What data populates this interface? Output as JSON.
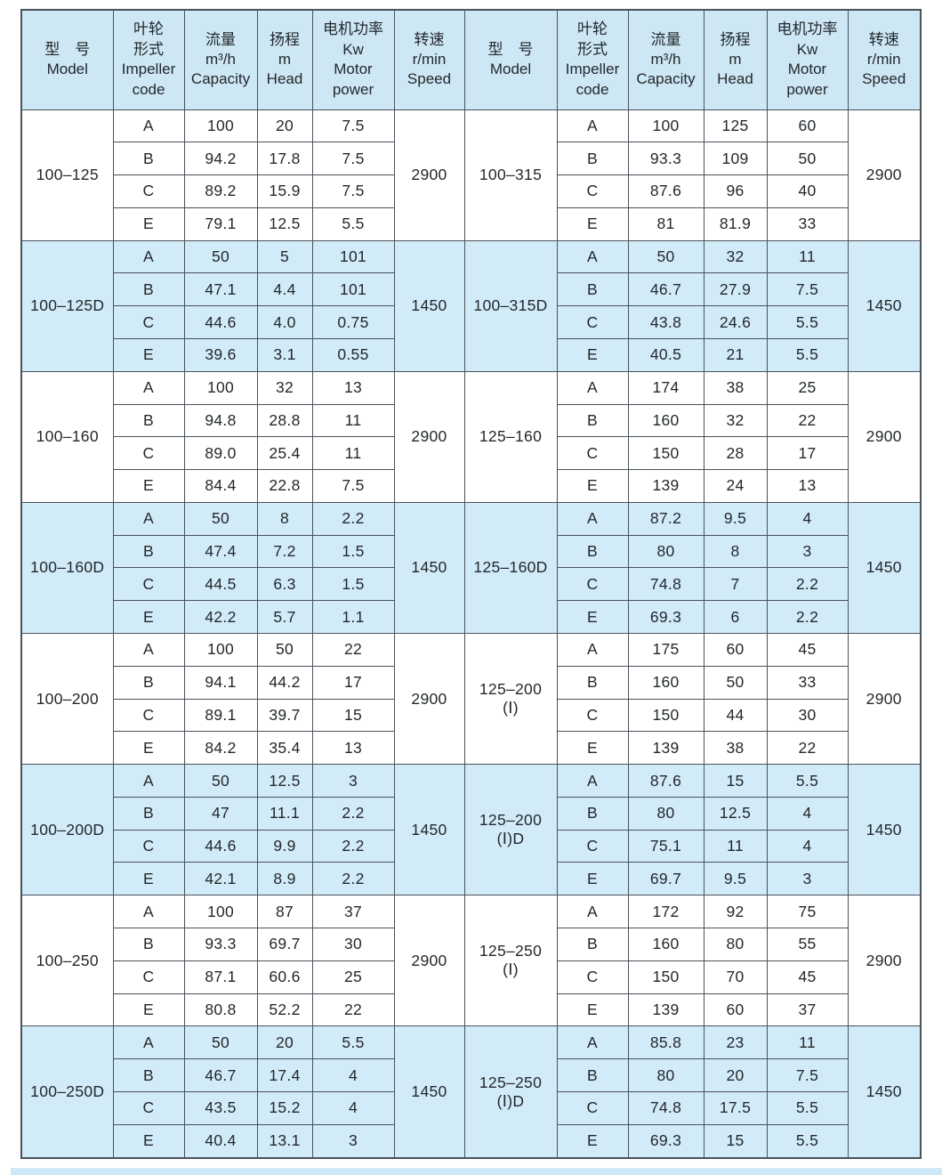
{
  "colors": {
    "header_bg": "#cde7f4",
    "row_blue": "#d2ebf8",
    "row_white": "#ffffff",
    "border": "#4a525a",
    "text": "#23282c",
    "bottom_strip": "#cfe9f6"
  },
  "table": {
    "header": {
      "model": "型　号\nModel",
      "impeller": "叶轮\n形式\nImpeller\ncode",
      "capacity": "流量\nm³/h\nCapacity",
      "head": "扬程\nm\nHead",
      "power": "电机功率\nKw\nMotor\npower",
      "speed": "转速\nr/min\nSpeed"
    },
    "groups": [
      {
        "shade": "white",
        "left": {
          "model": "100–125",
          "speed": "2900",
          "rows": [
            [
              "A",
              "100",
              "20",
              "7.5"
            ],
            [
              "B",
              "94.2",
              "17.8",
              "7.5"
            ],
            [
              "C",
              "89.2",
              "15.9",
              "7.5"
            ],
            [
              "E",
              "79.1",
              "12.5",
              "5.5"
            ]
          ]
        },
        "right": {
          "model": "100–315",
          "speed": "2900",
          "rows": [
            [
              "A",
              "100",
              "125",
              "60"
            ],
            [
              "B",
              "93.3",
              "109",
              "50"
            ],
            [
              "C",
              "87.6",
              "96",
              "40"
            ],
            [
              "E",
              "81",
              "81.9",
              "33"
            ]
          ]
        }
      },
      {
        "shade": "blue",
        "left": {
          "model": "100–125D",
          "speed": "1450",
          "rows": [
            [
              "A",
              "50",
              "5",
              "101"
            ],
            [
              "B",
              "47.1",
              "4.4",
              "101"
            ],
            [
              "C",
              "44.6",
              "4.0",
              "0.75"
            ],
            [
              "E",
              "39.6",
              "3.1",
              "0.55"
            ]
          ]
        },
        "right": {
          "model": "100–315D",
          "speed": "1450",
          "rows": [
            [
              "A",
              "50",
              "32",
              "11"
            ],
            [
              "B",
              "46.7",
              "27.9",
              "7.5"
            ],
            [
              "C",
              "43.8",
              "24.6",
              "5.5"
            ],
            [
              "E",
              "40.5",
              "21",
              "5.5"
            ]
          ]
        }
      },
      {
        "shade": "white",
        "left": {
          "model": "100–160",
          "speed": "2900",
          "rows": [
            [
              "A",
              "100",
              "32",
              "13"
            ],
            [
              "B",
              "94.8",
              "28.8",
              "11"
            ],
            [
              "C",
              "89.0",
              "25.4",
              "11"
            ],
            [
              "E",
              "84.4",
              "22.8",
              "7.5"
            ]
          ]
        },
        "right": {
          "model": "125–160",
          "speed": "2900",
          "rows": [
            [
              "A",
              "174",
              "38",
              "25"
            ],
            [
              "B",
              "160",
              "32",
              "22"
            ],
            [
              "C",
              "150",
              "28",
              "17"
            ],
            [
              "E",
              "139",
              "24",
              "13"
            ]
          ]
        }
      },
      {
        "shade": "blue",
        "left": {
          "model": "100–160D",
          "speed": "1450",
          "rows": [
            [
              "A",
              "50",
              "8",
              "2.2"
            ],
            [
              "B",
              "47.4",
              "7.2",
              "1.5"
            ],
            [
              "C",
              "44.5",
              "6.3",
              "1.5"
            ],
            [
              "E",
              "42.2",
              "5.7",
              "1.1"
            ]
          ]
        },
        "right": {
          "model": "125–160D",
          "speed": "1450",
          "rows": [
            [
              "A",
              "87.2",
              "9.5",
              "4"
            ],
            [
              "B",
              "80",
              "8",
              "3"
            ],
            [
              "C",
              "74.8",
              "7",
              "2.2"
            ],
            [
              "E",
              "69.3",
              "6",
              "2.2"
            ]
          ]
        }
      },
      {
        "shade": "white",
        "left": {
          "model": "100–200",
          "speed": "2900",
          "rows": [
            [
              "A",
              "100",
              "50",
              "22"
            ],
            [
              "B",
              "94.1",
              "44.2",
              "17"
            ],
            [
              "C",
              "89.1",
              "39.7",
              "15"
            ],
            [
              "E",
              "84.2",
              "35.4",
              "13"
            ]
          ]
        },
        "right": {
          "model": "125–200\n(Ⅰ)",
          "speed": "2900",
          "rows": [
            [
              "A",
              "175",
              "60",
              "45"
            ],
            [
              "B",
              "160",
              "50",
              "33"
            ],
            [
              "C",
              "150",
              "44",
              "30"
            ],
            [
              "E",
              "139",
              "38",
              "22"
            ]
          ]
        }
      },
      {
        "shade": "blue",
        "left": {
          "model": "100–200D",
          "speed": "1450",
          "rows": [
            [
              "A",
              "50",
              "12.5",
              "3"
            ],
            [
              "B",
              "47",
              "11.1",
              "2.2"
            ],
            [
              "C",
              "44.6",
              "9.9",
              "2.2"
            ],
            [
              "E",
              "42.1",
              "8.9",
              "2.2"
            ]
          ]
        },
        "right": {
          "model": "125–200\n(Ⅰ)D",
          "speed": "1450",
          "rows": [
            [
              "A",
              "87.6",
              "15",
              "5.5"
            ],
            [
              "B",
              "80",
              "12.5",
              "4"
            ],
            [
              "C",
              "75.1",
              "11",
              "4"
            ],
            [
              "E",
              "69.7",
              "9.5",
              "3"
            ]
          ]
        }
      },
      {
        "shade": "white",
        "left": {
          "model": "100–250",
          "speed": "2900",
          "rows": [
            [
              "A",
              "100",
              "87",
              "37"
            ],
            [
              "B",
              "93.3",
              "69.7",
              "30"
            ],
            [
              "C",
              "87.1",
              "60.6",
              "25"
            ],
            [
              "E",
              "80.8",
              "52.2",
              "22"
            ]
          ]
        },
        "right": {
          "model": "125–250\n(Ⅰ)",
          "speed": "2900",
          "rows": [
            [
              "A",
              "172",
              "92",
              "75"
            ],
            [
              "B",
              "160",
              "80",
              "55"
            ],
            [
              "C",
              "150",
              "70",
              "45"
            ],
            [
              "E",
              "139",
              "60",
              "37"
            ]
          ]
        }
      },
      {
        "shade": "blue",
        "left": {
          "model": "100–250D",
          "speed": "1450",
          "rows": [
            [
              "A",
              "50",
              "20",
              "5.5"
            ],
            [
              "B",
              "46.7",
              "17.4",
              "4"
            ],
            [
              "C",
              "43.5",
              "15.2",
              "4"
            ],
            [
              "E",
              "40.4",
              "13.1",
              "3"
            ]
          ]
        },
        "right": {
          "model": "125–250\n(Ⅰ)D",
          "speed": "1450",
          "rows": [
            [
              "A",
              "85.8",
              "23",
              "11"
            ],
            [
              "B",
              "80",
              "20",
              "7.5"
            ],
            [
              "C",
              "74.8",
              "17.5",
              "5.5"
            ],
            [
              "E",
              "69.3",
              "15",
              "5.5"
            ]
          ]
        }
      }
    ]
  }
}
